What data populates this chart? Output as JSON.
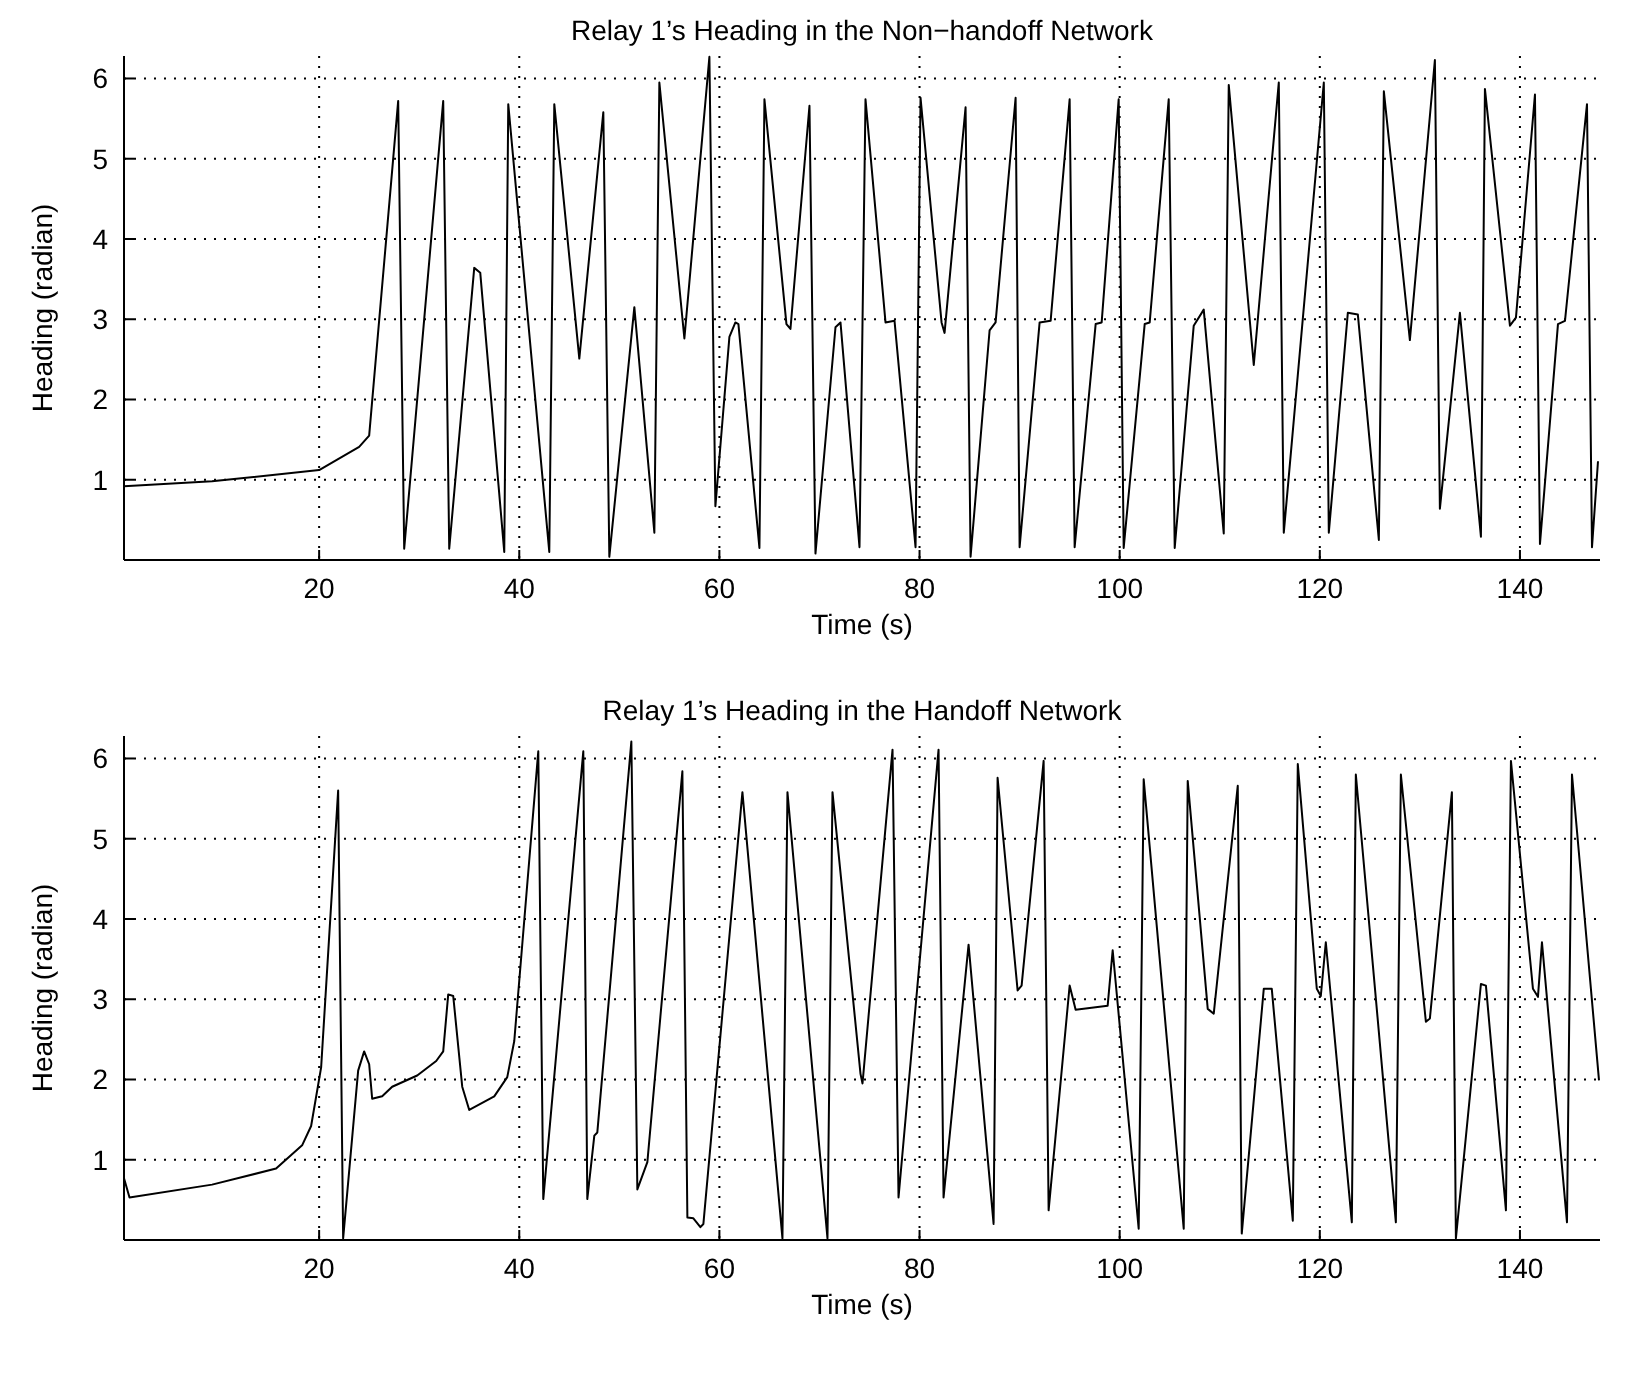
{
  "chart_data": [
    {
      "type": "line",
      "title": "Relay 1’s Heading in the Non−handoff Network",
      "xlabel": "Time (s)",
      "ylabel": "Heading (radian)",
      "xlim": [
        0.5,
        148
      ],
      "ylim": [
        0,
        6.28
      ],
      "xticks": [
        20,
        40,
        60,
        80,
        100,
        120,
        140
      ],
      "yticks": [
        1,
        2,
        3,
        4,
        5,
        6
      ],
      "grid": true,
      "series": [
        {
          "color": "#000000",
          "x": [
            0.5,
            9.3,
            20,
            24.0,
            25.0,
            27.9,
            28.5,
            32.4,
            33.0,
            35.5,
            36.1,
            38.5,
            38.9,
            43.0,
            43.5,
            46.0,
            48.4,
            49.0,
            51.5,
            53.5,
            54.0,
            56.5,
            59.0,
            59.6,
            61.0,
            61.6,
            61.9,
            64.0,
            64.5,
            66.7,
            67.1,
            69.0,
            69.6,
            71.6,
            72.1,
            74.0,
            74.6,
            76.6,
            77.5,
            79.6,
            80.1,
            82.2,
            82.5,
            84.6,
            85.1,
            87.0,
            87.6,
            89.6,
            90.0,
            92.0,
            93.1,
            95.0,
            95.5,
            97.6,
            98.2,
            99.9,
            100.4,
            102.5,
            103.0,
            104.9,
            105.5,
            107.4,
            108.4,
            110.4,
            110.9,
            113.4,
            115.9,
            116.4,
            120.4,
            120.9,
            122.8,
            123.8,
            125.9,
            126.4,
            129.0,
            131.5,
            132.0,
            134.0,
            136.1,
            136.5,
            139.0,
            139.6,
            141.5,
            142.0,
            143.8,
            144.5,
            146.7,
            147.2,
            147.8
          ],
          "values": [
            0.92,
            0.98,
            1.12,
            1.41,
            1.55,
            5.72,
            0.14,
            5.72,
            0.14,
            3.64,
            3.58,
            0.1,
            5.68,
            0.1,
            5.68,
            2.51,
            5.58,
            0.04,
            3.15,
            0.34,
            5.95,
            2.76,
            6.27,
            0.67,
            2.78,
            2.96,
            2.94,
            0.15,
            5.74,
            2.94,
            2.88,
            5.66,
            0.08,
            2.9,
            2.96,
            0.16,
            5.74,
            2.96,
            2.98,
            0.16,
            5.76,
            2.96,
            2.83,
            5.64,
            0.04,
            2.86,
            2.96,
            5.76,
            0.16,
            2.96,
            2.98,
            5.74,
            0.16,
            2.94,
            2.96,
            5.74,
            0.15,
            2.94,
            2.96,
            5.74,
            0.15,
            2.92,
            3.12,
            0.33,
            5.92,
            2.43,
            5.95,
            0.34,
            5.95,
            0.34,
            3.08,
            3.06,
            0.25,
            5.84,
            2.74,
            6.23,
            0.64,
            3.08,
            0.29,
            5.87,
            2.92,
            3.02,
            5.8,
            0.2,
            2.94,
            2.98,
            5.68,
            0.16,
            1.23
          ]
        }
      ]
    },
    {
      "type": "line",
      "title": "Relay 1’s Heading in the Handoff Network",
      "xlabel": "Time (s)",
      "ylabel": "Heading (radian)",
      "xlim": [
        0.5,
        148
      ],
      "ylim": [
        0,
        6.28
      ],
      "xticks": [
        20,
        40,
        60,
        80,
        100,
        120,
        140
      ],
      "yticks": [
        1,
        2,
        3,
        4,
        5,
        6
      ],
      "grid": true,
      "series": [
        {
          "color": "#000000",
          "x": [
            0.5,
            1.05,
            9.3,
            15.7,
            18.3,
            19.2,
            20.2,
            21.9,
            22.4,
            23.9,
            24.5,
            25.0,
            25.3,
            26.3,
            27.3,
            29.8,
            31.7,
            32.4,
            32.9,
            33.4,
            34.3,
            35.0,
            37.5,
            38.8,
            39.5,
            41.9,
            42.4,
            46.4,
            46.8,
            47.5,
            47.8,
            51.2,
            51.8,
            52.8,
            56.3,
            56.8,
            57.4,
            58.1,
            58.4,
            62.3,
            66.3,
            66.8,
            70.8,
            71.3,
            74.1,
            74.3,
            77.3,
            77.9,
            81.9,
            82.4,
            84.9,
            87.4,
            87.8,
            89.8,
            90.2,
            92.4,
            92.9,
            95.0,
            95.6,
            98.8,
            99.3,
            101.9,
            102.4,
            106.4,
            106.8,
            108.8,
            109.4,
            111.8,
            112.2,
            114.4,
            115.2,
            117.3,
            117.8,
            119.7,
            120.1,
            120.6,
            123.2,
            123.6,
            127.6,
            128.1,
            130.6,
            131.0,
            133.2,
            133.6,
            136.1,
            136.6,
            138.6,
            139.1,
            141.3,
            141.8,
            142.2,
            144.7,
            145.2,
            147.9
          ],
          "values": [
            0.77,
            0.53,
            0.69,
            0.89,
            1.18,
            1.42,
            2.15,
            5.6,
            0.02,
            2.11,
            2.35,
            2.19,
            1.76,
            1.79,
            1.91,
            2.05,
            2.23,
            2.35,
            3.06,
            3.04,
            1.91,
            1.62,
            1.79,
            2.03,
            2.48,
            6.09,
            0.51,
            6.09,
            0.51,
            1.3,
            1.34,
            6.21,
            0.63,
            0.97,
            5.84,
            0.28,
            0.27,
            0.16,
            0.2,
            5.58,
            0.02,
            5.58,
            0.02,
            5.58,
            2.07,
            1.95,
            6.11,
            0.53,
            6.11,
            0.53,
            3.68,
            0.2,
            5.76,
            3.11,
            3.17,
            5.97,
            0.37,
            3.17,
            2.87,
            2.92,
            3.61,
            0.14,
            5.74,
            0.14,
            5.72,
            2.88,
            2.82,
            5.66,
            0.08,
            3.13,
            3.13,
            0.24,
            5.93,
            3.13,
            3.04,
            3.71,
            0.22,
            5.8,
            0.22,
            5.8,
            2.72,
            2.76,
            5.58,
            0.02,
            3.19,
            3.17,
            0.37,
            5.97,
            3.13,
            3.03,
            3.71,
            0.22,
            5.8,
            1.99
          ]
        }
      ]
    }
  ]
}
